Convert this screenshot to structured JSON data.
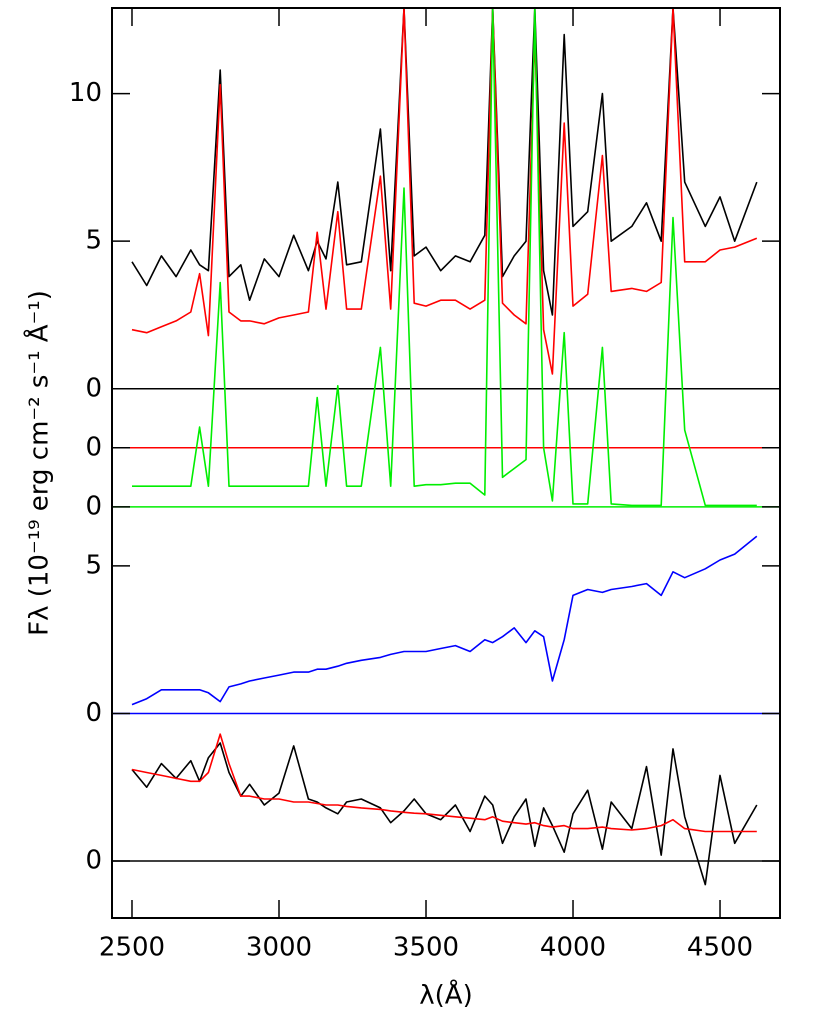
{
  "chart_data": {
    "type": "line",
    "x_label": "λ(Å)",
    "y_label": "Fλ (10⁻¹⁹ erg cm⁻² s⁻¹ Å⁻¹)",
    "xlim": [
      2432,
      4704
    ],
    "ylim": [
      -1.93,
      28.9
    ],
    "xticks": [
      2500,
      3000,
      3500,
      4000,
      4500
    ],
    "yticks": [
      0,
      {
        "value": 5,
        "label": "0"
      },
      {
        "value": 10,
        "label": "5"
      },
      {
        "value": 12,
        "label": "0"
      },
      {
        "value": 14,
        "label": "0"
      },
      {
        "value": 16,
        "label": "0"
      },
      {
        "value": 21,
        "label": "5"
      },
      {
        "value": 26,
        "label": "10"
      }
    ],
    "hlines": [
      {
        "value": 16,
        "color": "#000000"
      },
      {
        "value": 14,
        "color": "#ff0000"
      },
      {
        "value": 12,
        "color": "#00ee00"
      },
      {
        "value": 5,
        "color": "#0000ff"
      },
      {
        "value": 0,
        "color": "#000000"
      }
    ],
    "x": [
      2500,
      2550,
      2600,
      2650,
      2700,
      2730,
      2760,
      2800,
      2830,
      2870,
      2900,
      2950,
      3000,
      3050,
      3100,
      3130,
      3160,
      3200,
      3230,
      3280,
      3345,
      3380,
      3425,
      3460,
      3500,
      3550,
      3600,
      3650,
      3700,
      3727,
      3760,
      3800,
      3840,
      3870,
      3900,
      3930,
      3970,
      4000,
      4050,
      4100,
      4130,
      4200,
      4250,
      4300,
      4340,
      4380,
      4450,
      4500,
      4550,
      4625
    ],
    "series": [
      {
        "color": "#000000",
        "values": [
          20.3,
          19.5,
          20.5,
          19.8,
          20.7,
          20.2,
          20.0,
          26.8,
          19.8,
          20.2,
          19.0,
          20.4,
          19.8,
          21.2,
          20.0,
          21.0,
          20.4,
          23.0,
          20.2,
          20.3,
          24.8,
          20.0,
          28.9,
          20.5,
          20.8,
          20.0,
          20.5,
          20.3,
          21.2,
          28.9,
          19.8,
          20.5,
          21.0,
          28.9,
          20.0,
          18.5,
          28.0,
          21.5,
          22.0,
          26.0,
          21.0,
          21.5,
          22.3,
          21.0,
          28.9,
          23.0,
          21.5,
          22.5,
          21.0,
          23.0
        ]
      },
      {
        "color": "#ff0000",
        "values": [
          18.0,
          17.9,
          18.1,
          18.3,
          18.6,
          19.9,
          17.8,
          26.3,
          18.6,
          18.3,
          18.3,
          18.2,
          18.4,
          18.5,
          18.6,
          21.3,
          18.7,
          22.0,
          18.7,
          18.7,
          23.2,
          18.7,
          28.9,
          18.9,
          18.8,
          19.0,
          19.0,
          18.7,
          19.0,
          28.9,
          18.9,
          18.5,
          18.2,
          28.0,
          18.0,
          16.5,
          25.0,
          18.8,
          19.2,
          23.9,
          19.3,
          19.4,
          19.3,
          19.6,
          28.9,
          20.3,
          20.3,
          20.7,
          20.8,
          21.1
        ]
      },
      {
        "color": "#00ee00",
        "values": [
          12.7,
          12.7,
          12.7,
          12.7,
          12.7,
          14.7,
          12.7,
          19.6,
          12.7,
          12.7,
          12.7,
          12.7,
          12.7,
          12.7,
          12.7,
          15.7,
          12.7,
          16.1,
          12.7,
          12.7,
          17.4,
          12.7,
          22.8,
          12.7,
          12.75,
          12.75,
          12.8,
          12.8,
          12.4,
          28.9,
          13.0,
          13.3,
          13.6,
          28.9,
          14.0,
          12.2,
          17.9,
          12.1,
          12.1,
          17.4,
          12.1,
          12.05,
          12.05,
          12.05,
          21.8,
          14.6,
          12.05,
          12.05,
          12.05,
          12.05
        ]
      },
      {
        "color": "#0000ff",
        "values": [
          5.3,
          5.5,
          5.8,
          5.8,
          5.8,
          5.8,
          5.7,
          5.4,
          5.9,
          6.0,
          6.1,
          6.2,
          6.3,
          6.4,
          6.4,
          6.5,
          6.5,
          6.6,
          6.7,
          6.8,
          6.9,
          7.0,
          7.1,
          7.1,
          7.1,
          7.2,
          7.3,
          7.1,
          7.5,
          7.4,
          7.6,
          7.9,
          7.4,
          7.8,
          7.6,
          6.1,
          7.5,
          9.0,
          9.2,
          9.1,
          9.2,
          9.3,
          9.4,
          9.0,
          9.8,
          9.6,
          9.9,
          10.2,
          10.4,
          11.0
        ]
      },
      {
        "color": "#000000",
        "values": [
          3.1,
          2.5,
          3.3,
          2.8,
          3.4,
          2.7,
          3.5,
          4.0,
          3.0,
          2.2,
          2.6,
          1.9,
          2.3,
          3.9,
          2.1,
          2.0,
          1.8,
          1.6,
          2.0,
          2.1,
          1.8,
          1.3,
          1.7,
          2.1,
          1.6,
          1.4,
          1.9,
          1.0,
          2.2,
          1.9,
          0.6,
          1.5,
          2.1,
          0.5,
          1.8,
          1.2,
          0.3,
          1.6,
          2.4,
          0.4,
          2.0,
          1.1,
          3.2,
          0.2,
          3.8,
          1.5,
          -0.8,
          2.9,
          0.6,
          1.9
        ]
      },
      {
        "color": "#ff0000",
        "values": [
          3.1,
          3.0,
          2.9,
          2.8,
          2.7,
          2.7,
          3.0,
          4.3,
          3.3,
          2.2,
          2.2,
          2.1,
          2.1,
          2.0,
          2.0,
          1.95,
          1.9,
          1.9,
          1.85,
          1.8,
          1.75,
          1.7,
          1.65,
          1.62,
          1.6,
          1.55,
          1.5,
          1.45,
          1.4,
          1.5,
          1.35,
          1.3,
          1.25,
          1.3,
          1.2,
          1.15,
          1.2,
          1.1,
          1.1,
          1.15,
          1.1,
          1.05,
          1.1,
          1.2,
          1.4,
          1.1,
          1.0,
          1.0,
          1.0,
          1.0
        ]
      }
    ]
  }
}
